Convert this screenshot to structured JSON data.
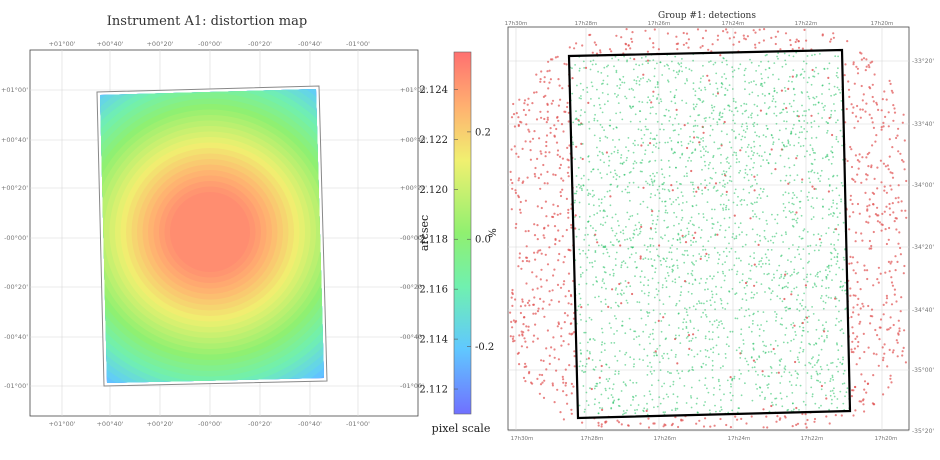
{
  "chart_data": [
    {
      "type": "heatmap",
      "title": "Instrument A1: distortion map",
      "x_ticks": [
        "+01°00'",
        "+00°40'",
        "+00°20'",
        "-00°00'",
        "-00°20'",
        "-00°40'",
        "-01°00'"
      ],
      "y_ticks": [
        "+01°00'",
        "+00°40'",
        "+00°20'",
        "-00°00'",
        "-00°20'",
        "-00°40'",
        "-01°00'"
      ],
      "field": {
        "center_value": 2.1245,
        "edge_value": 2.1115,
        "corner_value": 2.1105,
        "steps": 30
      },
      "colorbar": {
        "label": "pixel scale",
        "left_axis_label": "arcsec",
        "right_axis_label": "%",
        "range": [
          2.111,
          2.1255
        ],
        "left_ticks": [
          "2.124",
          "2.122",
          "2.120",
          "2.118",
          "2.116",
          "2.114",
          "2.112"
        ],
        "left_tick_values": [
          2.124,
          2.122,
          2.12,
          2.118,
          2.116,
          2.114,
          2.112
        ],
        "right_ticks": [
          "0.2",
          "0.0",
          "-0.2"
        ],
        "right_tick_values": [
          2.1223,
          2.118,
          2.1137
        ]
      }
    },
    {
      "type": "scatter",
      "title": "Group #1: detections",
      "x_ticks_top": [
        "17h30m",
        "17h28m",
        "17h26m",
        "17h24m",
        "17h22m",
        "17h20m"
      ],
      "x_ticks_bottom": [
        "17h30m",
        "17h28m",
        "17h26m",
        "17h24m",
        "17h22m",
        "17h20m"
      ],
      "y_ticks_right": [
        "-33°20'",
        "-33°40'",
        "-34°00'",
        "-34°20'",
        "-34°40'",
        "-35°00'",
        "-35°20'"
      ],
      "series": [
        {
          "color": "#e05050",
          "marker": "dot"
        },
        {
          "color": "#20c060",
          "marker": "dot"
        }
      ],
      "footprint": {
        "stroke": "#000000"
      }
    }
  ]
}
